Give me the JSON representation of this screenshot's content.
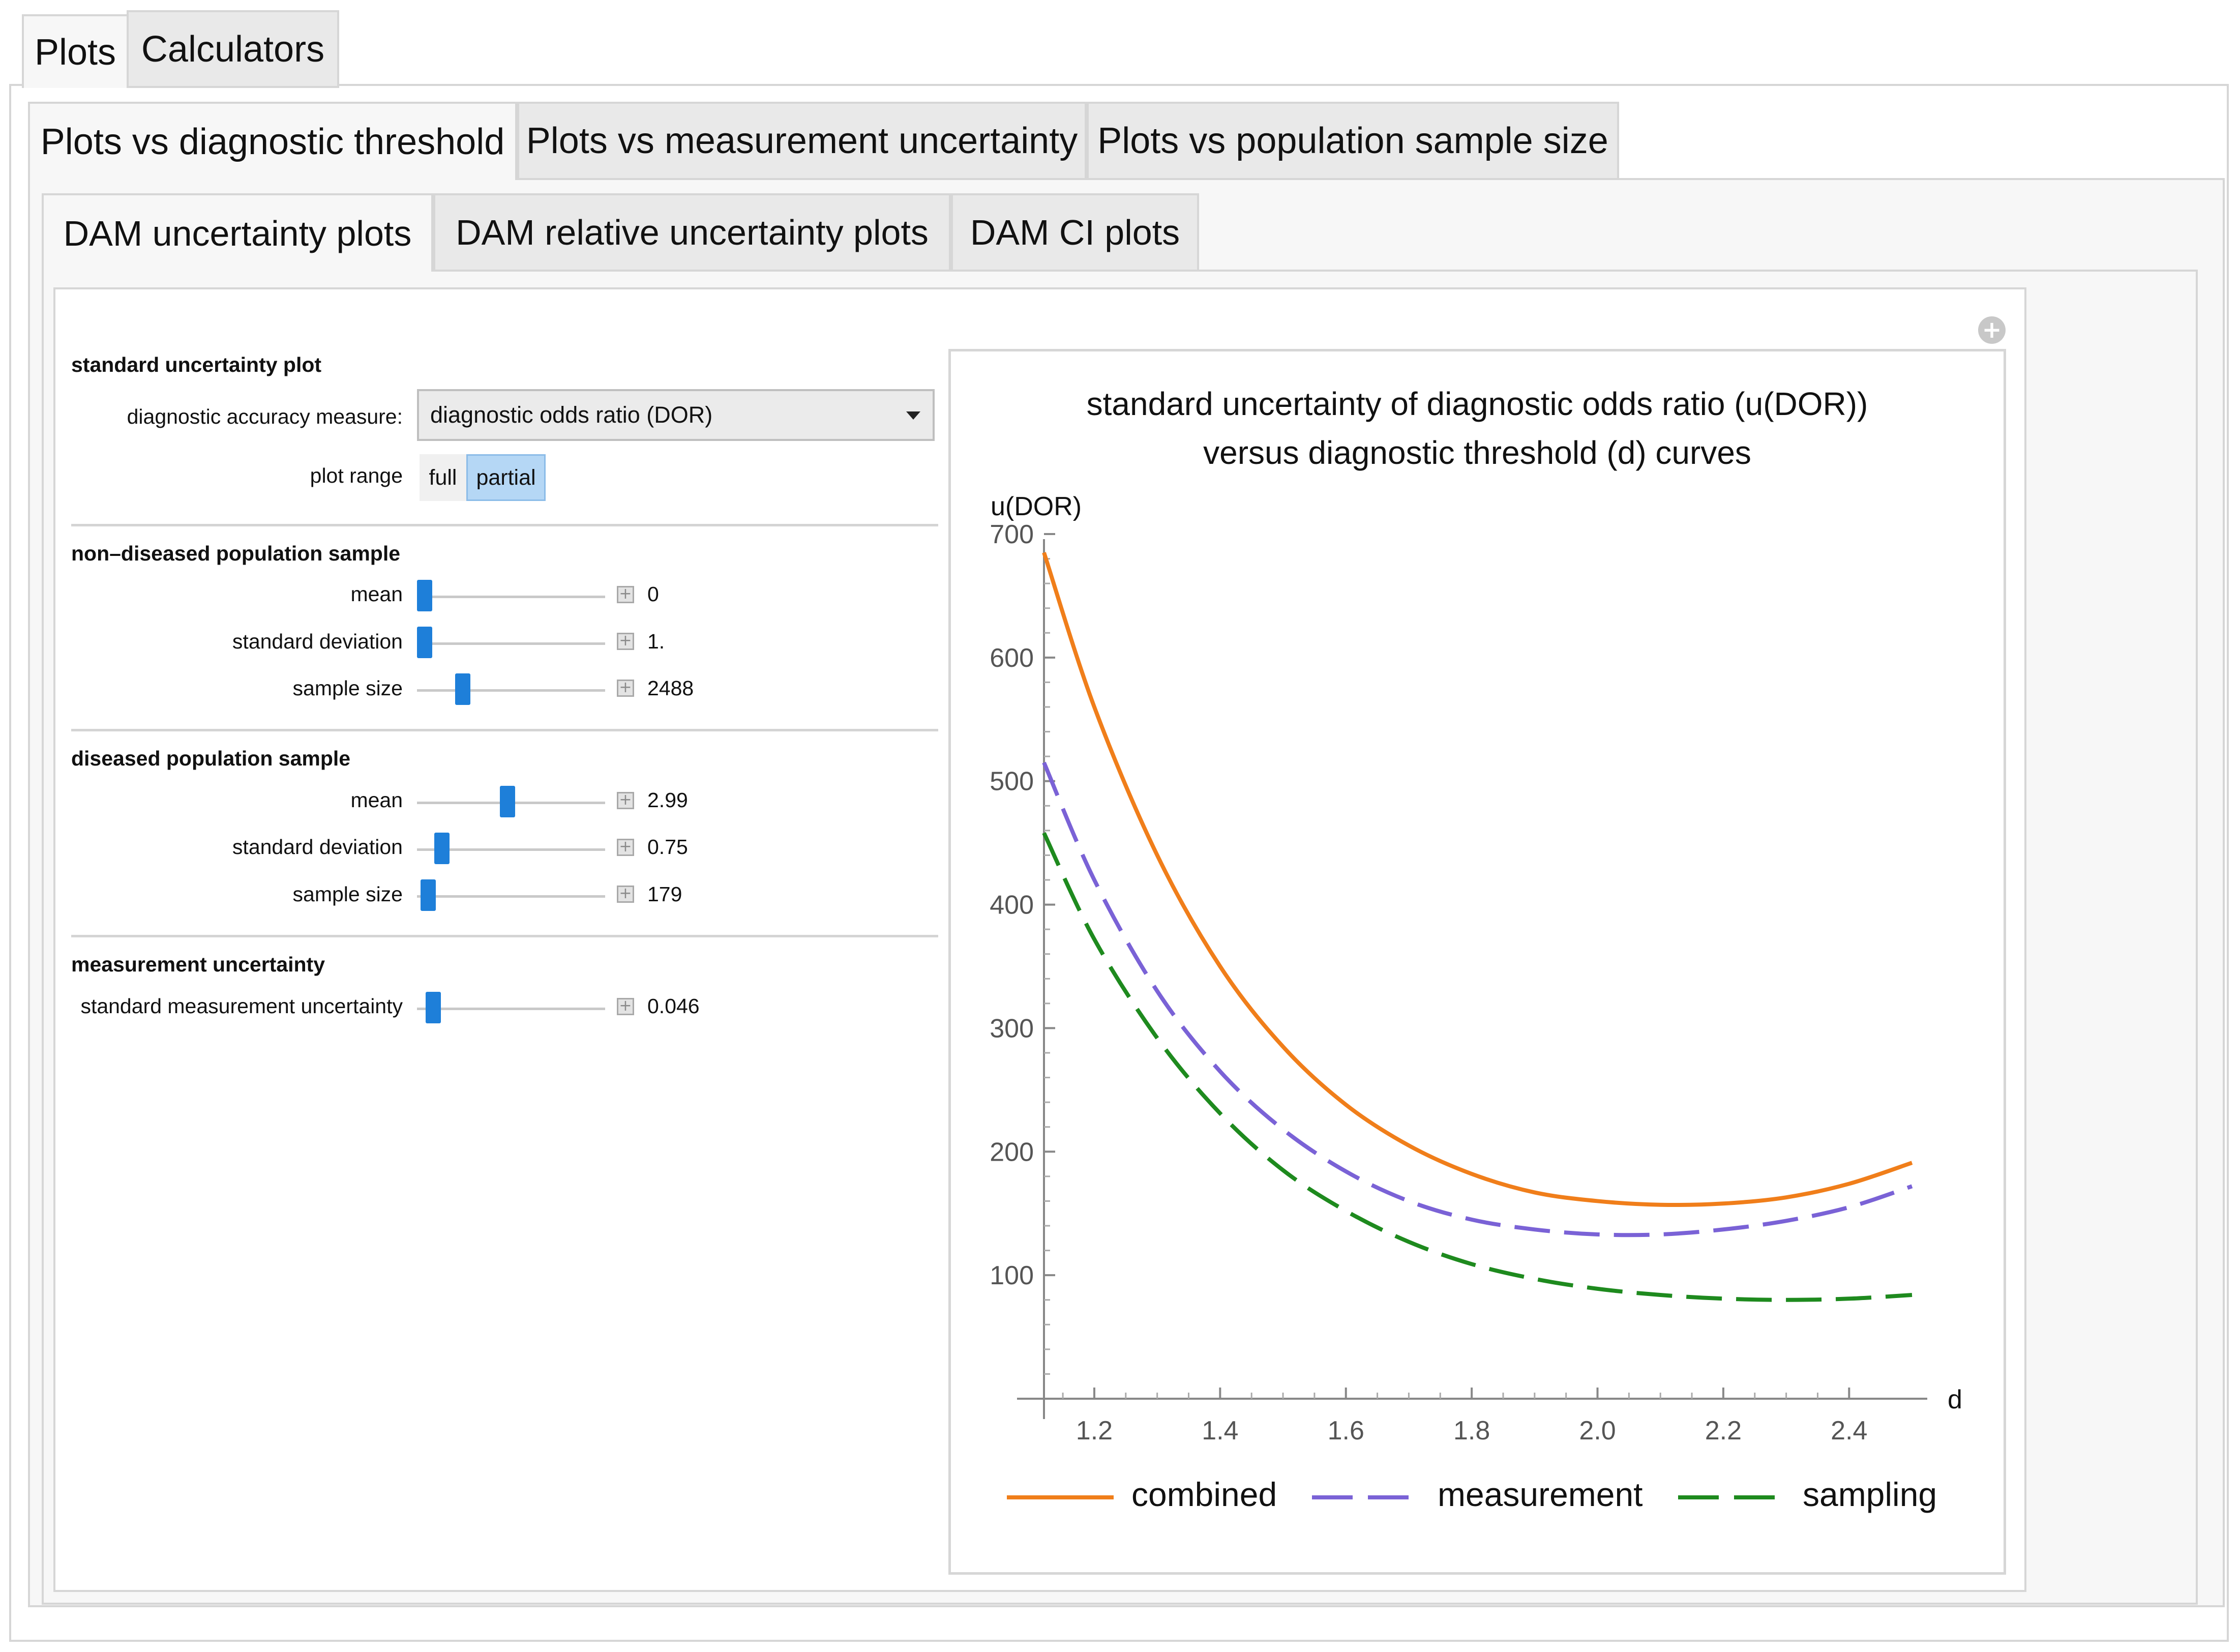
{
  "top_tabs": [
    {
      "label": "Plots",
      "active": true
    },
    {
      "label": "Calculators",
      "active": false
    }
  ],
  "second_tabs": [
    {
      "label": "Plots vs diagnostic threshold",
      "active": true
    },
    {
      "label": "Plots vs measurement uncertainty",
      "active": false
    },
    {
      "label": "Plots vs population sample size",
      "active": false
    }
  ],
  "third_tabs": [
    {
      "label": "DAM uncertainty plots",
      "active": true
    },
    {
      "label": "DAM relative uncertainty plots",
      "active": false
    },
    {
      "label": "DAM CI plots",
      "active": false
    }
  ],
  "controls": {
    "plot_section_title": "standard uncertainty plot",
    "dam_label": "diagnostic accuracy measure:",
    "dam_value": "diagnostic odds ratio (DOR)",
    "range_label": "plot range",
    "range_full": "full",
    "range_partial": "partial",
    "range_selected": "partial",
    "nondiseased": {
      "title": "non–diseased population sample",
      "mean_label": "mean",
      "mean_value": "0",
      "mean_pos": 0.0,
      "sd_label": "standard deviation",
      "sd_value": "1.",
      "sd_pos": 0.0,
      "n_label": "sample size",
      "n_value": "2488",
      "n_pos": 0.22
    },
    "diseased": {
      "title": "diseased population sample",
      "mean_label": "mean",
      "mean_value": "2.99",
      "mean_pos": 0.48,
      "sd_label": "standard deviation",
      "sd_value": "0.75",
      "sd_pos": 0.1,
      "n_label": "sample size",
      "n_value": "179",
      "n_pos": 0.02
    },
    "mu": {
      "title": "measurement uncertainty",
      "label": "standard measurement uncertainty",
      "value": "0.046",
      "pos": 0.05
    }
  },
  "plot": {
    "title_line1": "standard uncertainty of diagnostic odds ratio (u(DOR))",
    "title_line2": "versus diagnostic threshold (d) curves"
  },
  "chart_data": {
    "type": "line",
    "title": "standard uncertainty of diagnostic odds ratio (u(DOR)) versus diagnostic threshold (d) curves",
    "xlabel": "d",
    "ylabel": "u(DOR)",
    "xlim": [
      1.12,
      2.5
    ],
    "ylim": [
      0,
      700
    ],
    "xticks": [
      1.2,
      1.4,
      1.6,
      1.8,
      2.0,
      2.2,
      2.4
    ],
    "yticks": [
      100,
      200,
      300,
      400,
      500,
      600,
      700
    ],
    "legend_position": "bottom",
    "x": [
      1.12,
      1.2,
      1.3,
      1.4,
      1.5,
      1.6,
      1.7,
      1.8,
      1.9,
      2.0,
      2.1,
      2.2,
      2.3,
      2.4,
      2.5
    ],
    "series": [
      {
        "name": "combined",
        "color": "#f07e1a",
        "dash": "solid",
        "values": [
          685,
          560,
          440,
          350,
          285,
          238,
          205,
          182,
          167,
          160,
          157,
          158,
          163,
          174,
          191
        ]
      },
      {
        "name": "measurement",
        "color": "#7a62d6",
        "dash": "long-dash",
        "values": [
          515,
          420,
          330,
          265,
          218,
          184,
          160,
          145,
          137,
          133,
          133,
          137,
          144,
          155,
          172
        ]
      },
      {
        "name": "sampling",
        "color": "#1e8a1e",
        "dash": "long-dash",
        "values": [
          458,
          372,
          292,
          231,
          185,
          152,
          127,
          109,
          97,
          89,
          84,
          81,
          80,
          81,
          84
        ]
      }
    ]
  }
}
